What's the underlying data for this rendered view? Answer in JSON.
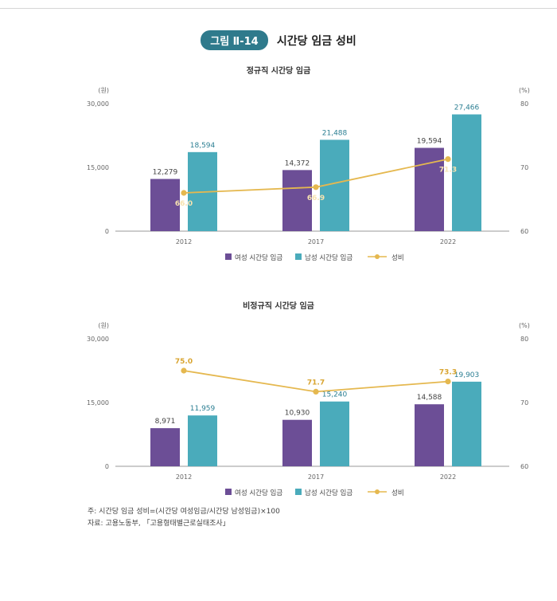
{
  "figure": {
    "badge": "그림 Ⅱ-14",
    "title": "시간당 임금 성비"
  },
  "colors": {
    "female": "#6c4e96",
    "male": "#4aabbb",
    "ratio": "#e5b84f",
    "badge": "#2f7a8c"
  },
  "chart_data": [
    {
      "type": "bar",
      "title": "정규직 시간당 임금",
      "categories": [
        "2012",
        "2017",
        "2022"
      ],
      "left_unit": "(원)",
      "right_unit": "(%)",
      "left_ticks": [
        "0",
        "15,000",
        "30,000"
      ],
      "right_ticks": [
        "60",
        "70",
        "80"
      ],
      "ylim": [
        0,
        30000
      ],
      "y2lim": [
        60,
        80
      ],
      "series": [
        {
          "name": "여성 시간당 임금",
          "values": [
            12279,
            14372,
            19594
          ],
          "labels": [
            "12,279",
            "14,372",
            "19,594"
          ]
        },
        {
          "name": "남성 시간당 임금",
          "values": [
            18594,
            21488,
            27466
          ],
          "labels": [
            "18,594",
            "21,488",
            "27,466"
          ]
        },
        {
          "name": "성비",
          "type": "line",
          "axis": "right",
          "values": [
            66.0,
            66.9,
            71.3
          ],
          "labels": [
            "66.0",
            "66.9",
            "71.3"
          ]
        }
      ],
      "legend": "bottom"
    },
    {
      "type": "bar",
      "title": "비정규직 시간당 임금",
      "categories": [
        "2012",
        "2017",
        "2022"
      ],
      "left_unit": "(원)",
      "right_unit": "(%)",
      "left_ticks": [
        "0",
        "15,000",
        "30,000"
      ],
      "right_ticks": [
        "60",
        "70",
        "80"
      ],
      "ylim": [
        0,
        30000
      ],
      "y2lim": [
        60,
        80
      ],
      "series": [
        {
          "name": "여성 시간당 임금",
          "values": [
            8971,
            10930,
            14588
          ],
          "labels": [
            "8,971",
            "10,930",
            "14,588"
          ]
        },
        {
          "name": "남성 시간당 임금",
          "values": [
            11959,
            15240,
            19903
          ],
          "labels": [
            "11,959",
            "15,240",
            "19,903"
          ]
        },
        {
          "name": "성비",
          "type": "line",
          "axis": "right",
          "values": [
            75.0,
            71.7,
            73.3
          ],
          "labels": [
            "75.0",
            "71.7",
            "73.3"
          ]
        }
      ],
      "legend": "bottom"
    }
  ],
  "notes": {
    "note": "주: 시간당 임금 성비=(시간당 여성임금/시간당 남성임금)×100",
    "source": "자료: 고용노동부, 「고용형태별근로실태조사」"
  }
}
